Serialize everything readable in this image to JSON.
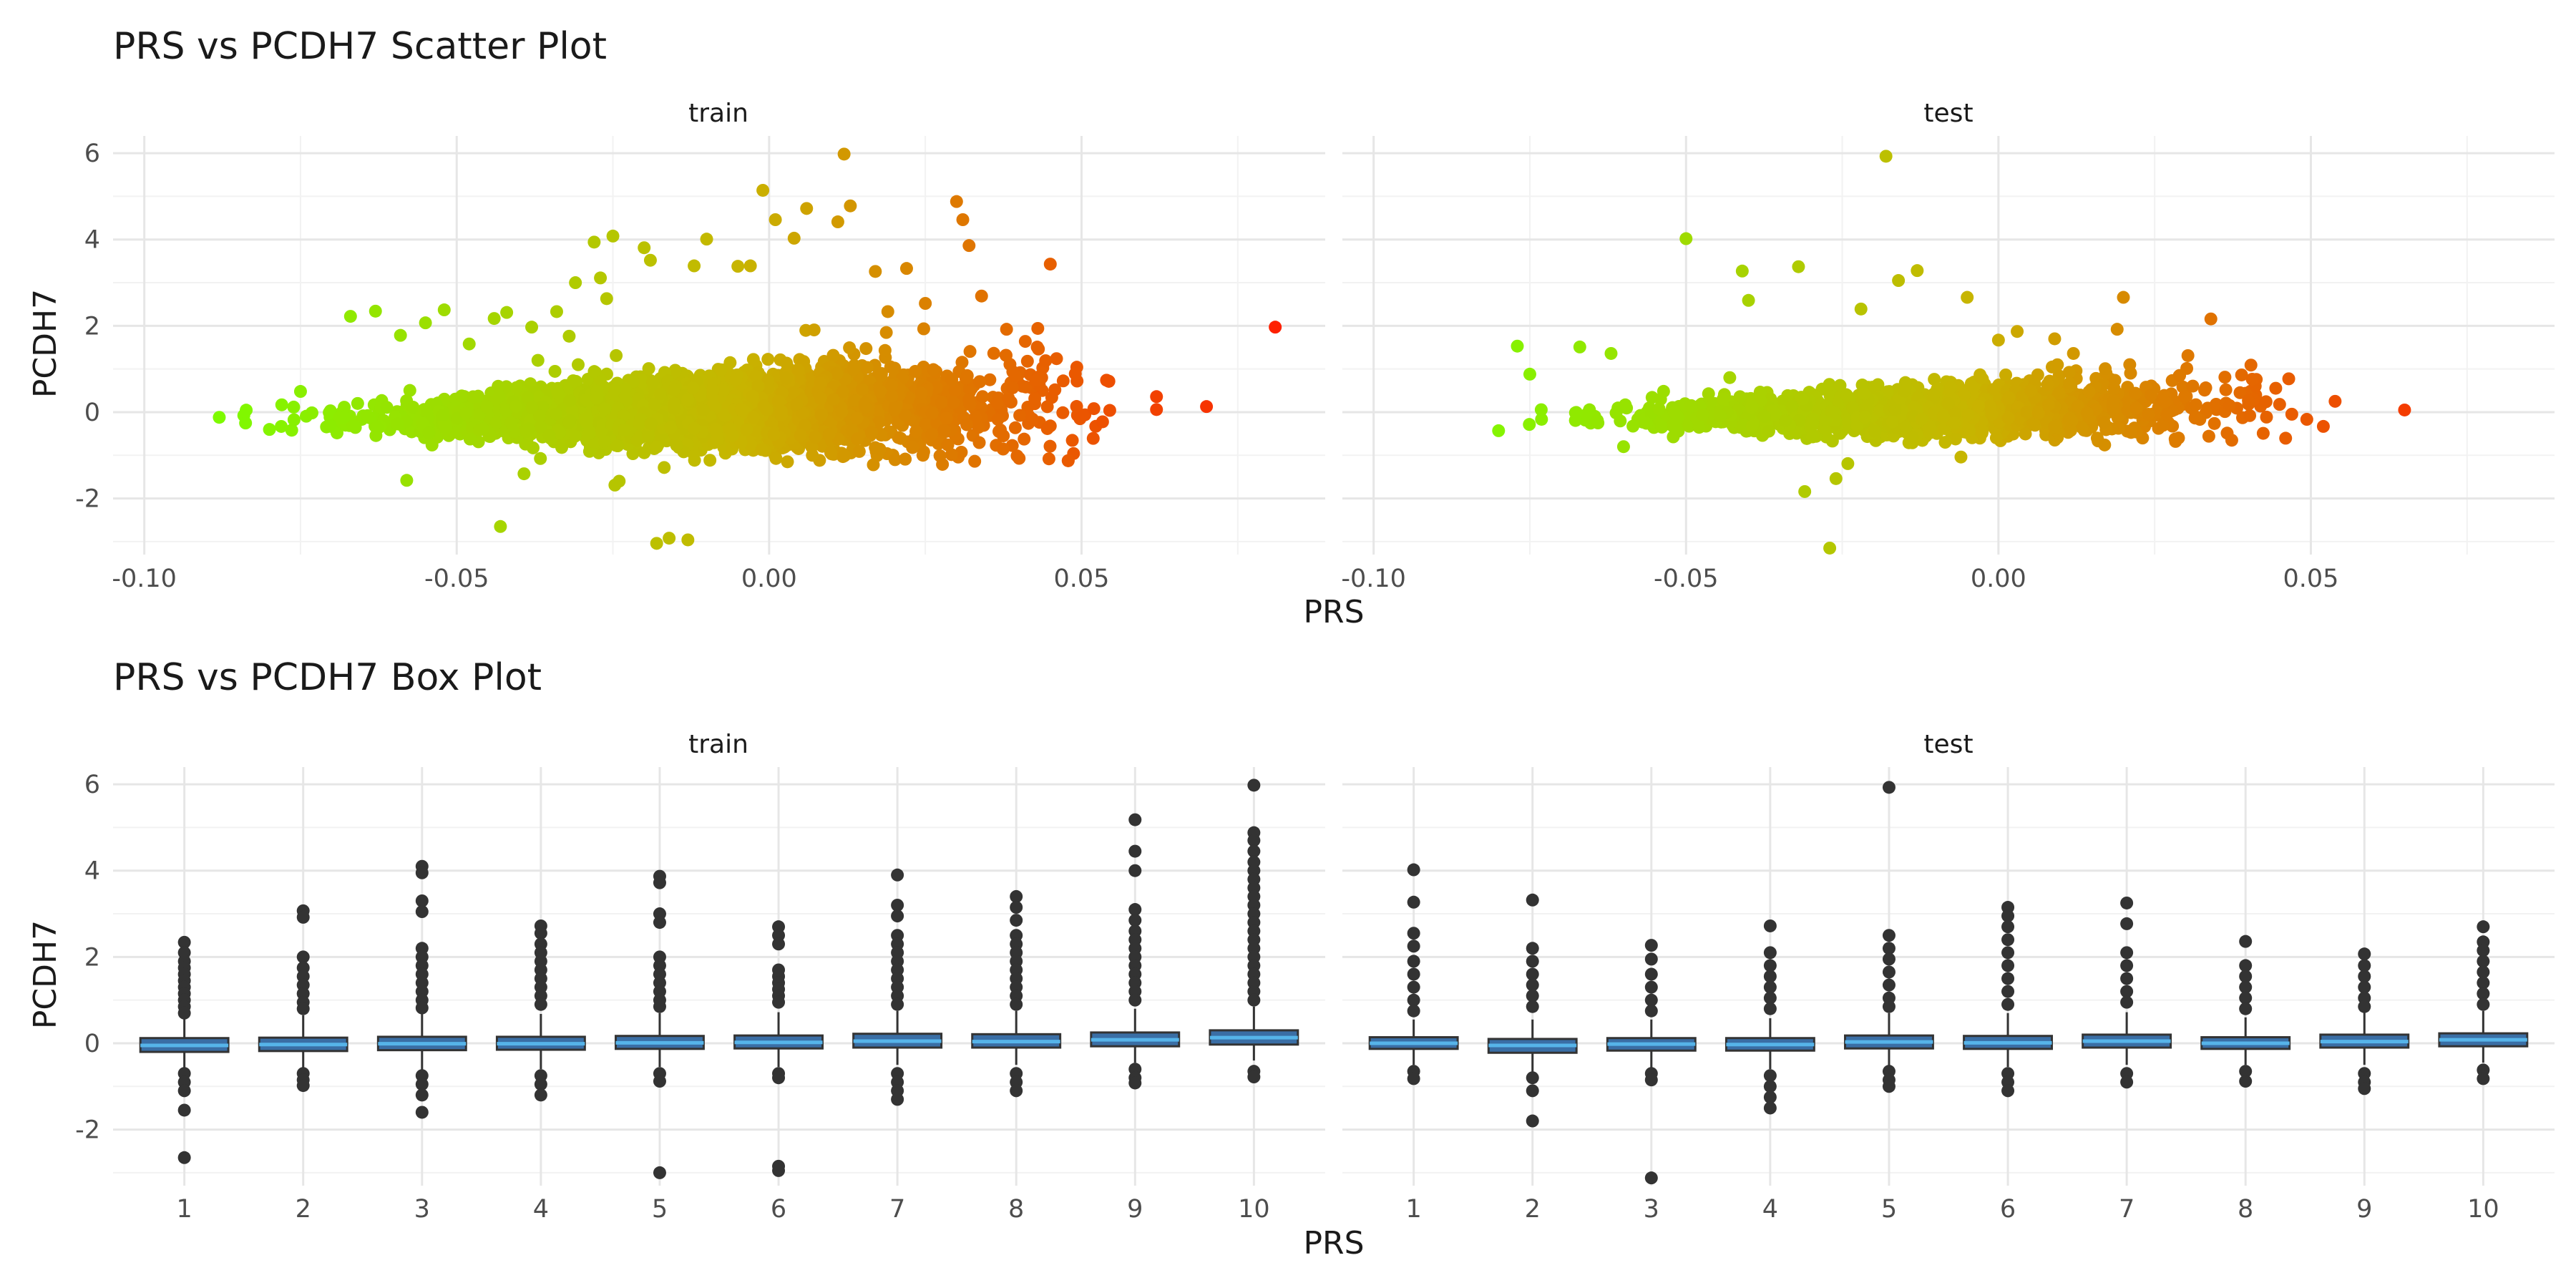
{
  "chart_data": [
    {
      "type": "scatter",
      "title": "PRS vs PCDH7 Scatter Plot",
      "xlabel": "PRS",
      "ylabel": "PCDH7",
      "facets": [
        "train",
        "test"
      ],
      "xlim": [
        -0.105,
        0.089
      ],
      "ylim": [
        -3.3,
        6.4
      ],
      "x_ticks": [
        "-0.10",
        "-0.05",
        "0.00",
        "0.05"
      ],
      "x_tick_values": [
        -0.1,
        -0.05,
        0.0,
        0.05
      ],
      "y_ticks": [
        "-2",
        "0",
        "2",
        "4",
        "6"
      ],
      "y_tick_values": [
        -2,
        0,
        2,
        4,
        6
      ],
      "grid": true,
      "color_scale": {
        "low": "#7CFC00",
        "high": "#FF1E00",
        "mapped_to": "PRS"
      },
      "series": [
        {
          "facet": "train",
          "points": [
            [
              -0.088,
              -0.12
            ],
            [
              -0.078,
              0.17
            ],
            [
              -0.075,
              0.48
            ],
            [
              -0.067,
              2.22
            ],
            [
              -0.063,
              2.34
            ],
            [
              -0.059,
              1.78
            ],
            [
              -0.058,
              -1.58
            ],
            [
              -0.055,
              2.07
            ],
            [
              -0.052,
              2.37
            ],
            [
              -0.048,
              1.58
            ],
            [
              -0.044,
              2.17
            ],
            [
              -0.043,
              -2.65
            ],
            [
              -0.042,
              2.31
            ],
            [
              -0.038,
              1.97
            ],
            [
              -0.037,
              1.2
            ],
            [
              -0.034,
              2.33
            ],
            [
              -0.032,
              1.76
            ],
            [
              -0.031,
              3.0
            ],
            [
              -0.028,
              3.94
            ],
            [
              -0.027,
              3.11
            ],
            [
              -0.026,
              2.63
            ],
            [
              -0.025,
              4.08
            ],
            [
              -0.024,
              -1.6
            ],
            [
              -0.02,
              3.81
            ],
            [
              -0.019,
              3.52
            ],
            [
              -0.018,
              -3.04
            ],
            [
              -0.016,
              -2.92
            ],
            [
              -0.013,
              -2.96
            ],
            [
              -0.012,
              3.39
            ],
            [
              -0.01,
              4.01
            ],
            [
              -0.005,
              3.38
            ],
            [
              -0.003,
              3.39
            ],
            [
              -0.001,
              5.14
            ],
            [
              0.001,
              4.46
            ],
            [
              0.004,
              4.03
            ],
            [
              0.006,
              4.72
            ],
            [
              0.011,
              4.41
            ],
            [
              0.012,
              5.98
            ],
            [
              0.013,
              4.78
            ],
            [
              0.017,
              3.26
            ],
            [
              0.019,
              2.33
            ],
            [
              0.022,
              3.33
            ],
            [
              0.025,
              2.52
            ],
            [
              0.03,
              4.88
            ],
            [
              0.031,
              4.46
            ],
            [
              0.032,
              3.86
            ],
            [
              0.034,
              2.69
            ],
            [
              0.038,
              1.92
            ],
            [
              0.041,
              1.64
            ],
            [
              0.043,
              1.94
            ],
            [
              0.045,
              3.43
            ],
            [
              0.046,
              1.24
            ],
            [
              0.049,
              0.89
            ],
            [
              0.054,
              0.74
            ],
            [
              0.045,
              -0.32
            ],
            [
              0.062,
              0.36
            ],
            [
              0.062,
              0.06
            ],
            [
              0.07,
              0.13
            ],
            [
              0.081,
              1.97
            ]
          ]
        },
        {
          "facet": "test",
          "points": [
            [
              -0.08,
              -0.43
            ],
            [
              -0.077,
              1.53
            ],
            [
              -0.075,
              0.88
            ],
            [
              -0.067,
              1.51
            ],
            [
              -0.062,
              1.36
            ],
            [
              -0.06,
              -0.8
            ],
            [
              -0.05,
              4.02
            ],
            [
              -0.043,
              0.8
            ],
            [
              -0.041,
              3.27
            ],
            [
              -0.04,
              2.59
            ],
            [
              -0.032,
              3.37
            ],
            [
              -0.031,
              -1.84
            ],
            [
              -0.027,
              -3.15
            ],
            [
              -0.026,
              -1.54
            ],
            [
              -0.022,
              2.39
            ],
            [
              -0.018,
              5.93
            ],
            [
              -0.016,
              3.05
            ],
            [
              -0.013,
              3.28
            ],
            [
              -0.005,
              2.66
            ],
            [
              -0.006,
              -1.04
            ],
            [
              0.0,
              1.67
            ],
            [
              0.003,
              1.87
            ],
            [
              0.009,
              1.7
            ],
            [
              0.012,
              1.36
            ],
            [
              0.017,
              -0.76
            ],
            [
              0.019,
              1.92
            ],
            [
              0.02,
              2.66
            ],
            [
              0.024,
              -0.05
            ],
            [
              0.029,
              0.85
            ],
            [
              0.033,
              0.51
            ],
            [
              0.034,
              2.16
            ],
            [
              0.04,
              0.27
            ],
            [
              0.045,
              0.18
            ],
            [
              0.052,
              -0.33
            ],
            [
              0.065,
              0.05
            ]
          ]
        }
      ],
      "cloud": [
        {
          "facet": "train",
          "n": 3800,
          "x_mean": -0.012,
          "x_sd": 0.022,
          "y_sd": 0.4
        },
        {
          "facet": "test",
          "n": 1700,
          "x_mean": -0.012,
          "x_sd": 0.021,
          "y_sd": 0.28
        }
      ]
    },
    {
      "type": "box",
      "title": "PRS vs PCDH7 Box Plot",
      "xlabel": "PRS",
      "ylabel": "PCDH7",
      "facets": [
        "train",
        "test"
      ],
      "categories": [
        "1",
        "2",
        "3",
        "4",
        "5",
        "6",
        "7",
        "8",
        "9",
        "10"
      ],
      "ylim": [
        -3.3,
        6.4
      ],
      "y_ticks": [
        "-2",
        "0",
        "2",
        "4",
        "6"
      ],
      "y_tick_values": [
        -2,
        0,
        2,
        4,
        6
      ],
      "grid": true,
      "box_fill": "#3a6ea5",
      "median_color": "#56B4E9",
      "series": [
        {
          "facet": "train",
          "boxes": [
            {
              "q1": -0.2,
              "median": -0.05,
              "q3": 0.12,
              "whisker_low": -0.65,
              "whisker_high": 0.6,
              "outliers": [
                2.34,
                2.1,
                1.9,
                1.75,
                1.6,
                1.45,
                1.3,
                1.15,
                1.0,
                0.85,
                0.7,
                -0.7,
                -0.9,
                -1.1,
                -1.55,
                -2.65
              ]
            },
            {
              "q1": -0.18,
              "median": -0.03,
              "q3": 0.13,
              "whisker_low": -0.6,
              "whisker_high": 0.65,
              "outliers": [
                3.07,
                2.92,
                2.0,
                1.75,
                1.55,
                1.35,
                1.15,
                0.95,
                0.8,
                -0.7,
                -0.85,
                -0.98
              ]
            },
            {
              "q1": -0.16,
              "median": -0.01,
              "q3": 0.15,
              "whisker_low": -0.62,
              "whisker_high": 0.68,
              "outliers": [
                4.1,
                3.95,
                3.3,
                3.05,
                2.2,
                2.0,
                1.8,
                1.6,
                1.4,
                1.2,
                1.0,
                0.82,
                -0.75,
                -0.95,
                -1.2,
                -1.6
              ]
            },
            {
              "q1": -0.15,
              "median": -0.01,
              "q3": 0.15,
              "whisker_low": -0.6,
              "whisker_high": 0.68,
              "outliers": [
                2.72,
                2.55,
                2.3,
                2.1,
                1.9,
                1.7,
                1.5,
                1.3,
                1.1,
                0.9,
                -0.75,
                -0.95,
                -1.2
              ]
            },
            {
              "q1": -0.13,
              "median": 0.01,
              "q3": 0.17,
              "whisker_low": -0.55,
              "whisker_high": 0.7,
              "outliers": [
                3.87,
                3.72,
                3.0,
                2.8,
                2.0,
                1.8,
                1.6,
                1.4,
                1.2,
                1.0,
                0.85,
                -0.7,
                -0.88,
                -3.0
              ]
            },
            {
              "q1": -0.12,
              "median": 0.02,
              "q3": 0.18,
              "whisker_low": -0.55,
              "whisker_high": 0.72,
              "outliers": [
                2.7,
                2.5,
                2.3,
                1.7,
                1.55,
                1.4,
                1.25,
                1.1,
                0.95,
                -0.7,
                -0.8,
                -2.85,
                -2.95
              ]
            },
            {
              "q1": -0.1,
              "median": 0.05,
              "q3": 0.22,
              "whisker_low": -0.5,
              "whisker_high": 0.75,
              "outliers": [
                3.9,
                3.2,
                2.95,
                2.5,
                2.3,
                2.1,
                1.9,
                1.7,
                1.5,
                1.3,
                1.1,
                0.9,
                -0.7,
                -0.9,
                -1.1,
                -1.3
              ]
            },
            {
              "q1": -0.1,
              "median": 0.04,
              "q3": 0.21,
              "whisker_low": -0.5,
              "whisker_high": 0.75,
              "outliers": [
                3.4,
                3.15,
                2.85,
                2.5,
                2.3,
                2.1,
                1.9,
                1.7,
                1.5,
                1.3,
                1.1,
                0.9,
                -0.7,
                -0.9,
                -1.1
              ]
            },
            {
              "q1": -0.07,
              "median": 0.08,
              "q3": 0.25,
              "whisker_low": -0.45,
              "whisker_high": 0.8,
              "outliers": [
                5.18,
                4.45,
                4.0,
                3.1,
                2.85,
                2.6,
                2.4,
                2.2,
                2.0,
                1.8,
                1.6,
                1.4,
                1.2,
                1.0,
                -0.6,
                -0.8,
                -0.92
              ]
            },
            {
              "q1": -0.03,
              "median": 0.13,
              "q3": 0.3,
              "whisker_low": -0.4,
              "whisker_high": 0.85,
              "outliers": [
                5.98,
                4.88,
                4.7,
                4.45,
                4.2,
                4.0,
                3.8,
                3.6,
                3.4,
                3.2,
                3.0,
                2.8,
                2.6,
                2.4,
                2.2,
                2.0,
                1.8,
                1.6,
                1.4,
                1.2,
                1.0,
                -0.65,
                -0.78
              ]
            }
          ]
        },
        {
          "facet": "test",
          "boxes": [
            {
              "q1": -0.13,
              "median": 0.0,
              "q3": 0.14,
              "whisker_low": -0.5,
              "whisker_high": 0.55,
              "outliers": [
                4.02,
                3.27,
                2.55,
                2.25,
                1.9,
                1.6,
                1.3,
                1.0,
                0.75,
                -0.65,
                -0.82
              ]
            },
            {
              "q1": -0.22,
              "median": -0.05,
              "q3": 0.1,
              "whisker_low": -0.7,
              "whisker_high": 0.55,
              "outliers": [
                3.32,
                2.2,
                1.9,
                1.6,
                1.35,
                1.1,
                0.85,
                -0.8,
                -1.1,
                -1.8
              ]
            },
            {
              "q1": -0.17,
              "median": -0.02,
              "q3": 0.12,
              "whisker_low": -0.6,
              "whisker_high": 0.55,
              "outliers": [
                2.27,
                1.95,
                1.6,
                1.3,
                1.0,
                0.75,
                -0.7,
                -0.85,
                -3.12
              ]
            },
            {
              "q1": -0.17,
              "median": -0.03,
              "q3": 0.12,
              "whisker_low": -0.6,
              "whisker_high": 0.58,
              "outliers": [
                2.72,
                2.1,
                1.8,
                1.55,
                1.3,
                1.05,
                0.8,
                -0.75,
                -1.0,
                -1.25,
                -1.5
              ]
            },
            {
              "q1": -0.12,
              "median": 0.03,
              "q3": 0.18,
              "whisker_low": -0.55,
              "whisker_high": 0.7,
              "outliers": [
                5.93,
                2.5,
                2.2,
                1.95,
                1.65,
                1.35,
                1.05,
                0.85,
                -0.65,
                -0.85,
                -1.0
              ]
            },
            {
              "q1": -0.13,
              "median": 0.01,
              "q3": 0.17,
              "whisker_low": -0.55,
              "whisker_high": 0.7,
              "outliers": [
                3.15,
                2.95,
                2.7,
                2.4,
                2.1,
                1.8,
                1.5,
                1.2,
                0.9,
                -0.7,
                -0.9,
                -1.1
              ]
            },
            {
              "q1": -0.1,
              "median": 0.05,
              "q3": 0.2,
              "whisker_low": -0.5,
              "whisker_high": 0.72,
              "outliers": [
                3.25,
                2.77,
                2.1,
                1.8,
                1.5,
                1.2,
                0.95,
                -0.7,
                -0.9
              ]
            },
            {
              "q1": -0.13,
              "median": 0.0,
              "q3": 0.14,
              "whisker_low": -0.5,
              "whisker_high": 0.6,
              "outliers": [
                2.36,
                1.8,
                1.55,
                1.3,
                1.05,
                0.8,
                -0.65,
                -0.88
              ]
            },
            {
              "q1": -0.1,
              "median": 0.04,
              "q3": 0.2,
              "whisker_low": -0.5,
              "whisker_high": 0.72,
              "outliers": [
                2.07,
                1.8,
                1.55,
                1.3,
                1.05,
                0.85,
                -0.7,
                -0.9,
                -1.05
              ]
            },
            {
              "q1": -0.07,
              "median": 0.08,
              "q3": 0.23,
              "whisker_low": -0.45,
              "whisker_high": 0.75,
              "outliers": [
                2.7,
                2.35,
                2.15,
                1.9,
                1.65,
                1.4,
                1.15,
                0.9,
                -0.62,
                -0.82
              ]
            }
          ]
        }
      ]
    }
  ]
}
